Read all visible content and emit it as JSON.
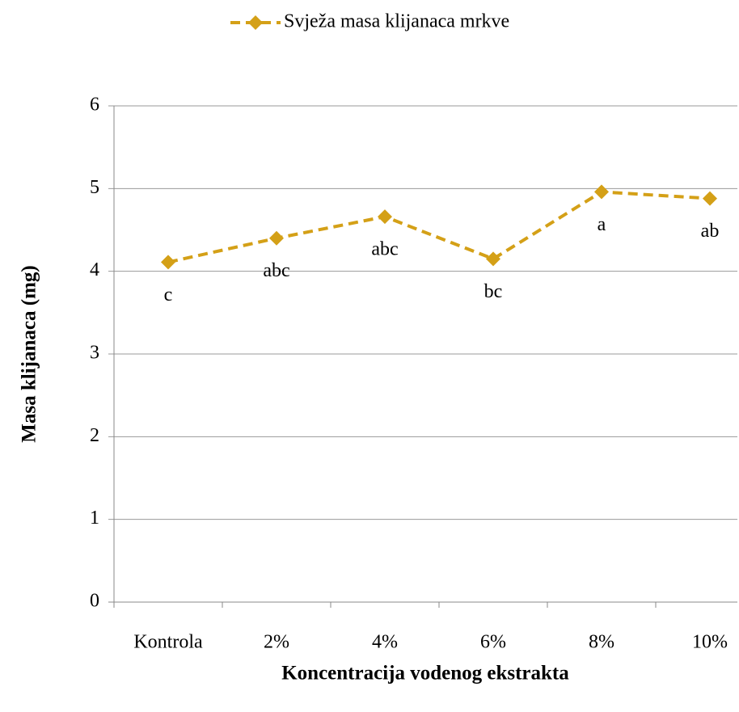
{
  "chart_data": {
    "type": "line",
    "x_label": "Koncentracija vodenog ekstrakta",
    "y_label": "Masa klijanaca (mg)",
    "categories": [
      "Kontrola",
      "2%",
      "4%",
      "6%",
      "8%",
      "10%"
    ],
    "series": [
      {
        "name": "Svježa masa klijanaca mrkve",
        "color": "#d4a017",
        "values": [
          4.11,
          4.4,
          4.66,
          4.15,
          4.96,
          4.88
        ]
      }
    ],
    "annotations": [
      "c",
      "abc",
      "abc",
      "bc",
      "a",
      "ab"
    ],
    "ylim": [
      0,
      6
    ],
    "yticks": [
      0,
      1,
      2,
      3,
      4,
      5,
      6
    ],
    "grid": true,
    "legend": "top"
  }
}
